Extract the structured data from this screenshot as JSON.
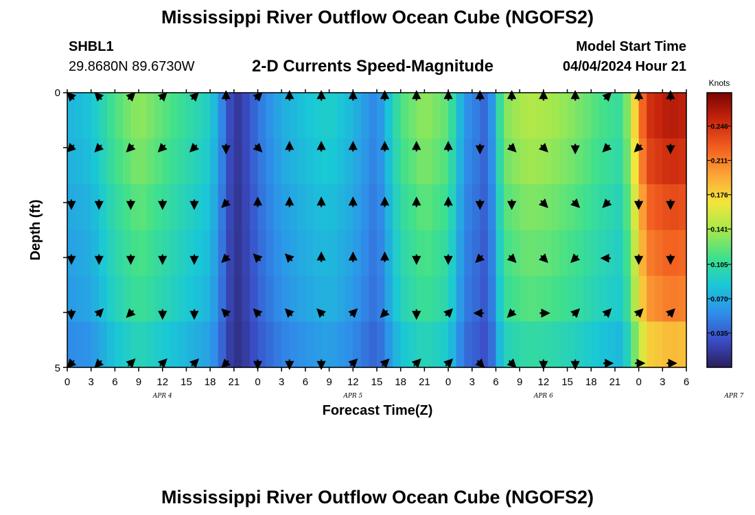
{
  "page": {
    "title": "Mississippi River Outflow Ocean Cube (NGOFS2)",
    "station_id": "SHBL1",
    "coordinates": "29.8680N  89.6730W",
    "model_start_label": "Model Start Time",
    "model_start_value": "04/04/2024 Hour 21"
  },
  "colors": {
    "colormap": [
      "#2a1e5c",
      "#3b4ec8",
      "#2f8fea",
      "#19c8d6",
      "#3fe08c",
      "#a6e84c",
      "#f2e63c",
      "#fca537",
      "#f25e20",
      "#c9260d",
      "#7a0403"
    ],
    "arrow": "#000000",
    "frame": "#000000"
  },
  "chart_data": {
    "type": "heatmap",
    "title": "2-D Currents Speed-Magnitude",
    "xlabel": "Forecast Time(Z)",
    "ylabel": "Depth (ft)",
    "x_tick_labels": [
      "0",
      "3",
      "6",
      "9",
      "12",
      "15",
      "18",
      "21",
      "0",
      "3",
      "6",
      "9",
      "12",
      "15",
      "18",
      "21",
      "0",
      "3",
      "6",
      "9",
      "12",
      "15",
      "18",
      "21",
      "0",
      "3",
      "6"
    ],
    "day_labels": [
      "APR 4",
      "APR 5",
      "APR 6",
      "APR 7"
    ],
    "y_tick_labels": [
      "0",
      "5"
    ],
    "ylim": [
      0,
      5
    ],
    "colorbar": {
      "unit": "Knots",
      "range": [
        0,
        0.28
      ],
      "tick_labels": [
        "0.246",
        "0.211",
        "0.176",
        "0.141",
        "0.105",
        "0.070",
        "0.035"
      ]
    },
    "speed_profile_knots": [
      {
        "hour": 0,
        "speed": 0.075
      },
      {
        "hour": 3,
        "speed": 0.082
      },
      {
        "hour": 6,
        "speed": 0.115
      },
      {
        "hour": 9,
        "speed": 0.135
      },
      {
        "hour": 12,
        "speed": 0.12
      },
      {
        "hour": 15,
        "speed": 0.105
      },
      {
        "hour": 18,
        "speed": 0.09
      },
      {
        "hour": 20,
        "speed": 0.04
      },
      {
        "hour": 21,
        "speed": 0.012
      },
      {
        "hour": 23,
        "speed": 0.03
      },
      {
        "hour": 24,
        "speed": 0.045
      },
      {
        "hour": 27,
        "speed": 0.07
      },
      {
        "hour": 30,
        "speed": 0.082
      },
      {
        "hour": 33,
        "speed": 0.09
      },
      {
        "hour": 36,
        "speed": 0.075
      },
      {
        "hour": 39,
        "speed": 0.05
      },
      {
        "hour": 42,
        "speed": 0.115
      },
      {
        "hour": 45,
        "speed": 0.135
      },
      {
        "hour": 48,
        "speed": 0.12
      },
      {
        "hour": 50,
        "speed": 0.06
      },
      {
        "hour": 52,
        "speed": 0.045
      },
      {
        "hour": 53,
        "speed": 0.035
      },
      {
        "hour": 55,
        "speed": 0.13
      },
      {
        "hour": 58,
        "speed": 0.145
      },
      {
        "hour": 61,
        "speed": 0.14
      },
      {
        "hour": 64,
        "speed": 0.13
      },
      {
        "hour": 67,
        "speed": 0.115
      },
      {
        "hour": 70,
        "speed": 0.105
      },
      {
        "hour": 73,
        "speed": 0.245
      },
      {
        "hour": 76,
        "speed": 0.26
      },
      {
        "hour": 78,
        "speed": 0.255
      }
    ],
    "depth_factors": [
      1.0,
      0.96,
      0.9,
      0.86,
      0.82,
      0.72
    ],
    "arrow_hours": [
      0,
      4,
      8,
      12,
      16,
      20,
      24,
      28,
      32,
      36,
      40,
      44,
      48,
      52,
      56,
      60,
      64,
      68,
      72,
      76
    ],
    "arrow_directions_deg": [
      [
        225,
        225,
        315,
        315,
        315,
        270,
        315,
        270,
        270,
        270,
        270,
        270,
        270,
        270,
        270,
        270,
        270,
        315,
        270,
        270
      ],
      [
        135,
        135,
        135,
        135,
        135,
        90,
        45,
        270,
        270,
        270,
        270,
        270,
        270,
        90,
        45,
        45,
        90,
        135,
        135,
        90
      ],
      [
        90,
        90,
        90,
        90,
        90,
        135,
        270,
        270,
        270,
        270,
        270,
        270,
        270,
        90,
        90,
        45,
        45,
        135,
        90,
        90
      ],
      [
        90,
        90,
        90,
        90,
        90,
        135,
        225,
        225,
        270,
        270,
        270,
        90,
        90,
        135,
        45,
        45,
        135,
        180,
        90,
        90
      ],
      [
        90,
        315,
        135,
        90,
        90,
        225,
        225,
        225,
        225,
        315,
        135,
        90,
        315,
        180,
        135,
        0,
        315,
        315,
        315,
        315
      ],
      [
        135,
        135,
        315,
        315,
        315,
        135,
        90,
        90,
        90,
        315,
        315,
        315,
        315,
        45,
        45,
        90,
        90,
        0,
        0,
        0
      ]
    ]
  }
}
